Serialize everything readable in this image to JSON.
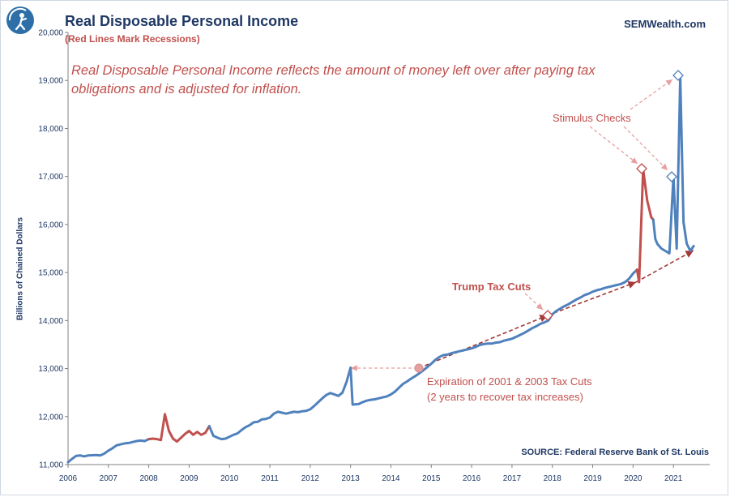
{
  "header": {
    "title": "Real Disposable  Personal  Income",
    "subtitle": "(Red Lines Mark Recessions)",
    "brand": "SEMWealth.com"
  },
  "description": "Real Disposable Personal Income reflects the amount of money left over after paying tax obligations and is adjusted for inflation.",
  "annotations": {
    "stimulus": "Stimulus Checks",
    "trump": "Trump Tax Cuts",
    "expiration_line1": "Expiration of 2001 & 2003  Tax Cuts",
    "expiration_line2": "(2 years to recover tax increases)"
  },
  "source": "SOURCE:  Federal Reserve Bank of St. Louis",
  "colors": {
    "series": "#4f81bd",
    "recession": "#c0504d",
    "annotation": "#c0504d",
    "title": "#1f3864"
  },
  "chart_data": {
    "type": "line",
    "title": "Real Disposable  Personal  Income",
    "subtitle": "(Red Lines Mark Recessions)",
    "ylabel": "Billions of Chained  Dollars",
    "xlabel": "",
    "ylim": [
      11000,
      20000
    ],
    "xlim": [
      2006,
      2021.9
    ],
    "y_ticks": [
      "11,000",
      "12,000",
      "13,000",
      "14,000",
      "15,000",
      "16,000",
      "17,000",
      "18,000",
      "19,000",
      "20,000"
    ],
    "x_ticks": [
      "2006",
      "2007",
      "2008",
      "2009",
      "2010",
      "2011",
      "2012",
      "2013",
      "2014",
      "2015",
      "2016",
      "2017",
      "2018",
      "2019",
      "2020",
      "2021"
    ],
    "grid": false,
    "legend": "none",
    "recessions": [
      [
        2008.0,
        2009.5
      ],
      [
        2020.1,
        2020.5
      ]
    ],
    "series": [
      {
        "points": [
          [
            2006.0,
            11050
          ],
          [
            2006.1,
            11120
          ],
          [
            2006.2,
            11180
          ],
          [
            2006.3,
            11190
          ],
          [
            2006.4,
            11170
          ],
          [
            2006.5,
            11190
          ],
          [
            2006.7,
            11200
          ],
          [
            2006.8,
            11190
          ],
          [
            2006.9,
            11230
          ],
          [
            2007.0,
            11290
          ],
          [
            2007.1,
            11340
          ],
          [
            2007.2,
            11400
          ],
          [
            2007.3,
            11420
          ],
          [
            2007.4,
            11440
          ],
          [
            2007.5,
            11450
          ],
          [
            2007.6,
            11470
          ],
          [
            2007.7,
            11490
          ],
          [
            2007.8,
            11500
          ],
          [
            2007.9,
            11490
          ],
          [
            2008.0,
            11530
          ],
          [
            2008.1,
            11540
          ],
          [
            2008.2,
            11530
          ],
          [
            2008.3,
            11510
          ],
          [
            2008.4,
            12050
          ],
          [
            2008.5,
            11700
          ],
          [
            2008.6,
            11540
          ],
          [
            2008.7,
            11480
          ],
          [
            2008.8,
            11560
          ],
          [
            2008.9,
            11640
          ],
          [
            2009.0,
            11700
          ],
          [
            2009.1,
            11620
          ],
          [
            2009.2,
            11680
          ],
          [
            2009.3,
            11620
          ],
          [
            2009.4,
            11660
          ],
          [
            2009.5,
            11800
          ],
          [
            2009.6,
            11600
          ],
          [
            2009.7,
            11560
          ],
          [
            2009.8,
            11530
          ],
          [
            2009.9,
            11540
          ],
          [
            2010.0,
            11580
          ],
          [
            2010.1,
            11620
          ],
          [
            2010.2,
            11650
          ],
          [
            2010.3,
            11720
          ],
          [
            2010.4,
            11780
          ],
          [
            2010.5,
            11820
          ],
          [
            2010.6,
            11880
          ],
          [
            2010.7,
            11890
          ],
          [
            2010.8,
            11940
          ],
          [
            2010.9,
            11950
          ],
          [
            2011.0,
            11980
          ],
          [
            2011.1,
            12060
          ],
          [
            2011.2,
            12100
          ],
          [
            2011.3,
            12080
          ],
          [
            2011.4,
            12060
          ],
          [
            2011.5,
            12080
          ],
          [
            2011.6,
            12100
          ],
          [
            2011.7,
            12090
          ],
          [
            2011.8,
            12110
          ],
          [
            2011.9,
            12120
          ],
          [
            2012.0,
            12150
          ],
          [
            2012.1,
            12220
          ],
          [
            2012.2,
            12300
          ],
          [
            2012.3,
            12380
          ],
          [
            2012.4,
            12450
          ],
          [
            2012.5,
            12490
          ],
          [
            2012.6,
            12460
          ],
          [
            2012.7,
            12430
          ],
          [
            2012.8,
            12500
          ],
          [
            2012.9,
            12720
          ],
          [
            2013.0,
            13020
          ],
          [
            2013.05,
            12250
          ],
          [
            2013.2,
            12260
          ],
          [
            2013.3,
            12300
          ],
          [
            2013.4,
            12330
          ],
          [
            2013.5,
            12350
          ],
          [
            2013.6,
            12360
          ],
          [
            2013.7,
            12380
          ],
          [
            2013.8,
            12400
          ],
          [
            2013.9,
            12420
          ],
          [
            2014.0,
            12460
          ],
          [
            2014.1,
            12520
          ],
          [
            2014.2,
            12600
          ],
          [
            2014.3,
            12680
          ],
          [
            2014.4,
            12730
          ],
          [
            2014.5,
            12790
          ],
          [
            2014.6,
            12840
          ],
          [
            2014.7,
            12900
          ],
          [
            2014.8,
            12960
          ],
          [
            2014.9,
            13030
          ],
          [
            2015.0,
            13100
          ],
          [
            2015.1,
            13180
          ],
          [
            2015.2,
            13240
          ],
          [
            2015.3,
            13280
          ],
          [
            2015.4,
            13290
          ],
          [
            2015.5,
            13320
          ],
          [
            2015.6,
            13340
          ],
          [
            2015.7,
            13360
          ],
          [
            2015.8,
            13380
          ],
          [
            2015.9,
            13400
          ],
          [
            2016.0,
            13420
          ],
          [
            2016.1,
            13450
          ],
          [
            2016.2,
            13490
          ],
          [
            2016.3,
            13510
          ],
          [
            2016.4,
            13520
          ],
          [
            2016.5,
            13520
          ],
          [
            2016.6,
            13540
          ],
          [
            2016.7,
            13550
          ],
          [
            2016.8,
            13580
          ],
          [
            2016.9,
            13600
          ],
          [
            2017.0,
            13620
          ],
          [
            2017.1,
            13660
          ],
          [
            2017.2,
            13700
          ],
          [
            2017.3,
            13740
          ],
          [
            2017.4,
            13790
          ],
          [
            2017.5,
            13840
          ],
          [
            2017.6,
            13880
          ],
          [
            2017.7,
            13930
          ],
          [
            2017.8,
            13960
          ],
          [
            2017.9,
            14000
          ],
          [
            2018.0,
            14130
          ],
          [
            2018.1,
            14200
          ],
          [
            2018.2,
            14250
          ],
          [
            2018.3,
            14300
          ],
          [
            2018.4,
            14340
          ],
          [
            2018.5,
            14390
          ],
          [
            2018.6,
            14440
          ],
          [
            2018.7,
            14480
          ],
          [
            2018.8,
            14530
          ],
          [
            2018.9,
            14560
          ],
          [
            2019.0,
            14600
          ],
          [
            2019.1,
            14630
          ],
          [
            2019.2,
            14650
          ],
          [
            2019.3,
            14680
          ],
          [
            2019.4,
            14700
          ],
          [
            2019.5,
            14720
          ],
          [
            2019.6,
            14740
          ],
          [
            2019.7,
            14760
          ],
          [
            2019.8,
            14800
          ],
          [
            2019.9,
            14870
          ],
          [
            2020.0,
            14980
          ],
          [
            2020.1,
            15060
          ],
          [
            2020.15,
            14800
          ],
          [
            2020.25,
            17150
          ],
          [
            2020.35,
            16500
          ],
          [
            2020.45,
            16150
          ],
          [
            2020.5,
            16100
          ],
          [
            2020.55,
            15700
          ],
          [
            2020.6,
            15600
          ],
          [
            2020.7,
            15500
          ],
          [
            2020.8,
            15450
          ],
          [
            2020.9,
            15400
          ],
          [
            2021.0,
            17000
          ],
          [
            2021.08,
            15500
          ],
          [
            2021.17,
            19080
          ],
          [
            2021.25,
            16050
          ],
          [
            2021.33,
            15600
          ],
          [
            2021.42,
            15450
          ],
          [
            2021.5,
            15550
          ]
        ]
      }
    ]
  }
}
